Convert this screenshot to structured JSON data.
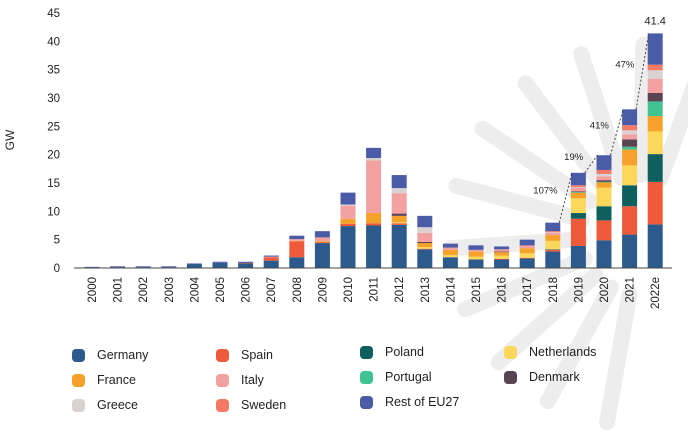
{
  "chart_data": {
    "type": "bar",
    "stacked": true,
    "title": "",
    "ylabel": "GW",
    "xlabel": "",
    "ylim": [
      0,
      45
    ],
    "yticks": [
      0,
      5,
      10,
      15,
      20,
      25,
      30,
      35,
      40,
      45
    ],
    "grid": false,
    "legend_position": "bottom",
    "categories": [
      "2000",
      "2001",
      "2002",
      "2003",
      "2004",
      "2005",
      "2006",
      "2007",
      "2008",
      "2009",
      "2010",
      "2011",
      "2012",
      "2013",
      "2014",
      "2015",
      "2016",
      "2017",
      "2018",
      "2019",
      "2020",
      "2021",
      "2022e"
    ],
    "series": [
      {
        "name": "Germany",
        "color": "#2d5a8c",
        "values": [
          0.1,
          0.1,
          0.1,
          0.1,
          0.7,
          0.9,
          0.8,
          1.3,
          1.9,
          4.4,
          7.4,
          7.5,
          7.6,
          3.3,
          1.9,
          1.5,
          1.5,
          1.7,
          2.9,
          3.9,
          4.9,
          5.9,
          7.7
        ]
      },
      {
        "name": "Spain",
        "color": "#ee5a3a",
        "values": [
          0,
          0,
          0,
          0,
          0,
          0,
          0.1,
          0.6,
          2.8,
          0.1,
          0.4,
          0.4,
          0.3,
          0.1,
          0,
          0,
          0.1,
          0.1,
          0.3,
          4.8,
          3.5,
          5.0,
          7.5
        ]
      },
      {
        "name": "Poland",
        "color": "#0f5f5f",
        "values": [
          0,
          0,
          0,
          0,
          0,
          0,
          0,
          0,
          0,
          0,
          0,
          0,
          0,
          0,
          0,
          0,
          0,
          0,
          0.1,
          1.0,
          2.5,
          3.7,
          4.9
        ]
      },
      {
        "name": "Netherlands",
        "color": "#fbd75b",
        "values": [
          0,
          0,
          0,
          0,
          0,
          0,
          0,
          0,
          0,
          0,
          0,
          0,
          0.2,
          0.3,
          0.4,
          0.5,
          0.6,
          0.8,
          1.5,
          2.6,
          3.3,
          3.5,
          4.0
        ]
      },
      {
        "name": "France",
        "color": "#f5a12a",
        "values": [
          0,
          0,
          0,
          0,
          0,
          0,
          0,
          0,
          0.1,
          0.2,
          0.9,
          1.8,
          1.1,
          0.7,
          0.9,
          0.9,
          0.6,
          0.9,
          1.0,
          1.0,
          0.9,
          2.8,
          2.7
        ]
      },
      {
        "name": "Portugal",
        "color": "#40c293",
        "values": [
          0,
          0,
          0,
          0,
          0,
          0,
          0,
          0,
          0,
          0,
          0,
          0,
          0,
          0,
          0,
          0,
          0,
          0,
          0,
          0.1,
          0.1,
          0.5,
          2.6
        ]
      },
      {
        "name": "Denmark",
        "color": "#5a4352",
        "values": [
          0,
          0,
          0,
          0,
          0,
          0,
          0,
          0,
          0,
          0,
          0,
          0,
          0.4,
          0.2,
          0,
          0,
          0.1,
          0,
          0,
          0.1,
          0.3,
          1.3,
          1.5
        ]
      },
      {
        "name": "Italy",
        "color": "#f2a0a0",
        "values": [
          0,
          0,
          0,
          0,
          0,
          0,
          0,
          0.1,
          0.3,
          0.7,
          2.3,
          9.3,
          3.6,
          1.6,
          0.4,
          0.3,
          0.4,
          0.4,
          0.4,
          0.7,
          0.7,
          0.9,
          2.5
        ]
      },
      {
        "name": "Greece",
        "color": "#d9d2d0",
        "values": [
          0,
          0,
          0,
          0,
          0,
          0,
          0,
          0,
          0,
          0,
          0.2,
          0.4,
          0.9,
          1.0,
          0,
          0,
          0,
          0,
          0.1,
          0.1,
          0.4,
          0.7,
          1.5
        ]
      },
      {
        "name": "Sweden",
        "color": "#f47a66",
        "values": [
          0,
          0,
          0,
          0,
          0,
          0,
          0,
          0,
          0,
          0,
          0,
          0,
          0,
          0,
          0,
          0,
          0,
          0.1,
          0.2,
          0.3,
          0.7,
          0.9,
          1.0
        ]
      },
      {
        "name": "Rest of EU27",
        "color": "#4a5ba8",
        "values": [
          0.1,
          0.2,
          0.2,
          0.2,
          0.1,
          0.2,
          0.2,
          0.2,
          0.6,
          1.1,
          2.1,
          1.8,
          2.3,
          2.0,
          0.7,
          0.8,
          0.5,
          1.0,
          1.5,
          2.2,
          2.6,
          2.8,
          5.5
        ]
      }
    ],
    "annotations": {
      "growth": [
        {
          "from": "2018",
          "to": "2019",
          "label": "107%"
        },
        {
          "from": "2019",
          "to": "2020",
          "label": "19%"
        },
        {
          "from": "2020",
          "to": "2021",
          "label": "41%"
        },
        {
          "from": "2021",
          "to": "2022e",
          "label": "47%"
        }
      ],
      "total_label": {
        "category": "2022e",
        "label": "41.4"
      }
    },
    "legend": {
      "rows": [
        [
          "Germany",
          "Spain",
          "Poland",
          "Netherlands"
        ],
        [
          "France",
          "Italy",
          "Portugal",
          "Denmark"
        ],
        [
          "Greece",
          "Sweden",
          "Rest of EU27"
        ]
      ]
    }
  }
}
